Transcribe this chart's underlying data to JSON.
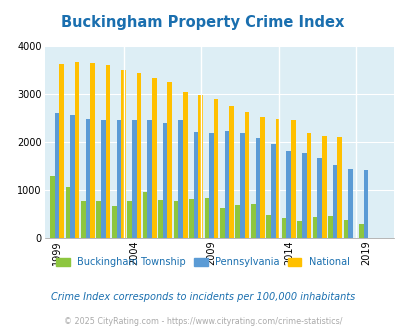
{
  "title": "Buckingham Property Crime Index",
  "years": [
    1999,
    2000,
    2001,
    2002,
    2003,
    2004,
    2005,
    2006,
    2007,
    2008,
    2009,
    2010,
    2011,
    2012,
    2013,
    2014,
    2015,
    2016,
    2017,
    2018,
    2019,
    2020
  ],
  "buckingham": [
    1280,
    1050,
    760,
    760,
    670,
    760,
    950,
    780,
    760,
    810,
    830,
    620,
    690,
    700,
    480,
    420,
    340,
    440,
    460,
    360,
    280,
    0
  ],
  "pennsylvania": [
    2600,
    2560,
    2470,
    2450,
    2450,
    2450,
    2460,
    2400,
    2450,
    2200,
    2180,
    2220,
    2180,
    2080,
    1960,
    1820,
    1760,
    1660,
    1510,
    1430,
    1420,
    0
  ],
  "national": [
    3620,
    3660,
    3640,
    3600,
    3510,
    3440,
    3330,
    3250,
    3040,
    2970,
    2900,
    2760,
    2620,
    2520,
    2480,
    2460,
    2190,
    2130,
    2110,
    0,
    0,
    0
  ],
  "color_buckingham": "#8dc63f",
  "color_pennsylvania": "#5b9bd5",
  "color_national": "#ffc000",
  "color_background": "#ddeef5",
  "color_title": "#1a6faf",
  "color_note": "#1a6faf",
  "color_copyright": "#aaaaaa",
  "ylim": [
    0,
    4000
  ],
  "yticks": [
    0,
    1000,
    2000,
    3000,
    4000
  ],
  "xtick_labels": [
    "1999",
    "2004",
    "2009",
    "2014",
    "2019"
  ],
  "xtick_positions": [
    0,
    5,
    10,
    15,
    20
  ],
  "subtitle": "Crime Index corresponds to incidents per 100,000 inhabitants",
  "copyright": "© 2025 CityRating.com - https://www.cityrating.com/crime-statistics/"
}
